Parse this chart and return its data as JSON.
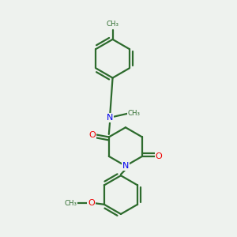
{
  "bg_color": "#eef2ee",
  "bond_color": "#2d6b2d",
  "N_color": "#0000ee",
  "O_color": "#ee0000",
  "lw": 1.6,
  "figsize": [
    3.0,
    3.0
  ],
  "dpi": 100,
  "xlim": [
    0,
    10
  ],
  "ylim": [
    0,
    10
  ]
}
